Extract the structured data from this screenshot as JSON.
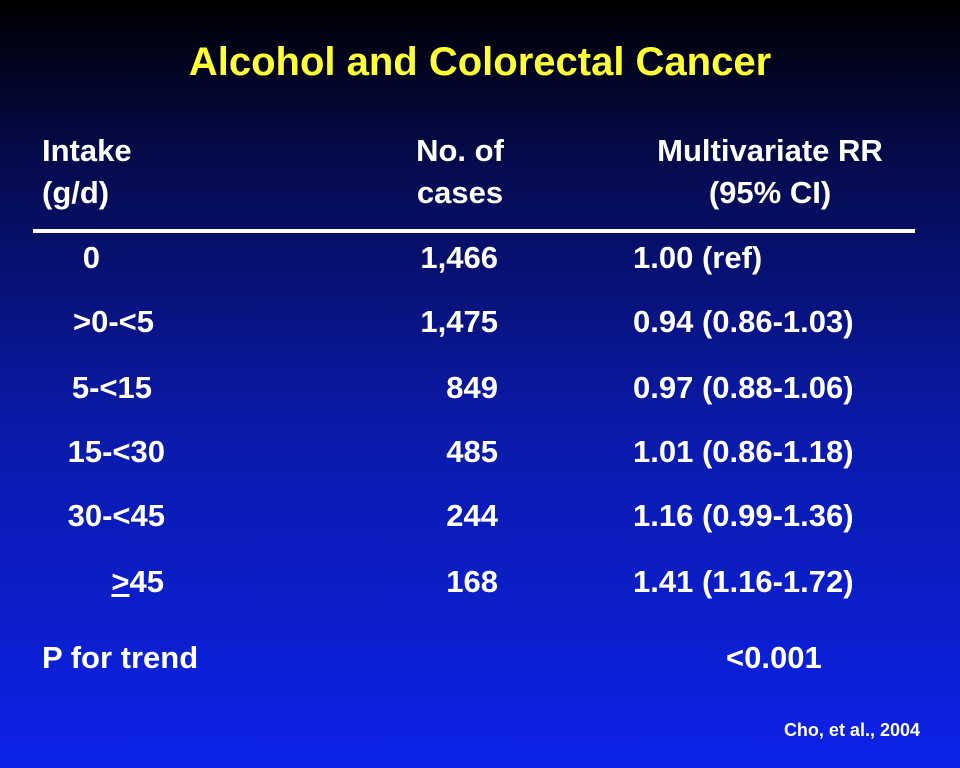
{
  "title": "Alcohol and Colorectal Cancer",
  "header": {
    "intake_line1": "Intake",
    "intake_line2": "(g/d)",
    "cases_line1": "No. of",
    "cases_line2": "cases",
    "rr_line1": "Multivariate RR",
    "rr_line2": "(95% CI)"
  },
  "rows": [
    {
      "intake": "0",
      "cases": "1,466",
      "rr": "1.00 (ref)"
    },
    {
      "intake": ">0-<5",
      "cases": "1,475",
      "rr": "0.94 (0.86-1.03)"
    },
    {
      "intake": "5-<15",
      "cases": "849",
      "rr": "0.97 (0.88-1.06)"
    },
    {
      "intake": "15-<30",
      "cases": "485",
      "rr": "1.01 (0.86-1.18)"
    },
    {
      "intake": "30-<45",
      "cases": "244",
      "rr": "1.16 (0.99-1.36)"
    },
    {
      "intake_symbol": ">",
      "intake_rest": "45",
      "cases": "168",
      "rr": "1.41 (1.16-1.72)"
    }
  ],
  "trend": {
    "label": "P for trend",
    "value": "<0.001"
  },
  "citation": "Cho, et al., 2004",
  "colors": {
    "title": "#ffff33",
    "text": "#ffffff",
    "background_top": "#000000",
    "background_bottom": "#0c22e8"
  }
}
